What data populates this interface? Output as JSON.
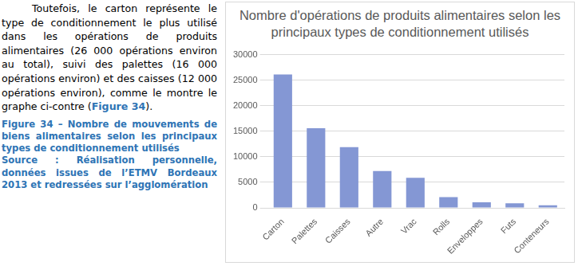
{
  "paragraph": {
    "text_before": "Toutefois, le carton représente le type de conditionnement le plus utilisé dans les opérations de produits alimentaires (26 000 opérations environ au total), suivi des palettes (16 000 opérations environ) et des caisses (12 000 opérations environ), comme le montre le graphe ci-contre (",
    "reference": "Figure 34",
    "text_after": ")."
  },
  "caption": {
    "title": "Figure 34 – Nombre de mouvements de biens alimentaires selon les principaux types de conditionnement utilisés",
    "source": "Source : Réalisation personnelle, données issues de l’ETMV Bordeaux 2013 et redressées sur l’agglomération"
  },
  "chart_data": {
    "type": "bar",
    "title": "Nombre d'opérations de produits alimentaires selon les principaux types de conditionnement utilisés",
    "categories": [
      "Carton",
      "Palettes",
      "Caisses",
      "Autre",
      "Vrac",
      "Rolls",
      "Enveloppes",
      "Futs",
      "Conteneurs"
    ],
    "values": [
      26100,
      15600,
      11900,
      7200,
      5900,
      2100,
      1100,
      900,
      500
    ],
    "color": "#8497d4",
    "ylim": [
      0,
      30000
    ],
    "yticks": [
      0,
      5000,
      10000,
      15000,
      20000,
      25000,
      30000
    ],
    "grid": true
  }
}
